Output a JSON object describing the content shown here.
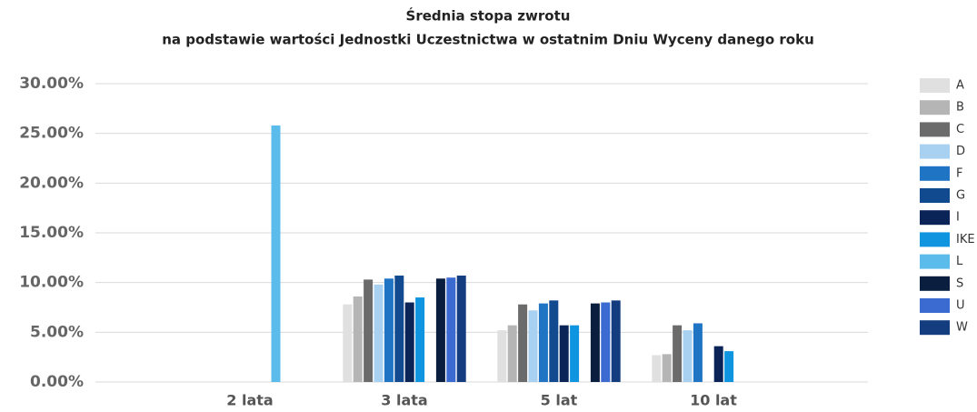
{
  "chart_data": {
    "type": "bar",
    "title": "Średnia stopa zwrotu",
    "subtitle": "na podstawie wartości Jednostki Uczestnictwa w ostatnim Dniu Wyceny danego roku",
    "categories": [
      "2 lata",
      "3 lata",
      "5 lat",
      "10 lat"
    ],
    "series": [
      {
        "name": "A",
        "color": "#e0e0e0",
        "values": [
          null,
          7.8,
          5.2,
          2.7
        ]
      },
      {
        "name": "B",
        "color": "#b5b5b5",
        "values": [
          null,
          8.6,
          5.7,
          2.8
        ]
      },
      {
        "name": "C",
        "color": "#6b6b6b",
        "values": [
          null,
          10.3,
          7.8,
          5.7
        ]
      },
      {
        "name": "D",
        "color": "#a8d0f0",
        "values": [
          null,
          9.8,
          7.2,
          5.2
        ]
      },
      {
        "name": "F",
        "color": "#1f74c4",
        "values": [
          null,
          10.4,
          7.9,
          5.9
        ]
      },
      {
        "name": "G",
        "color": "#114a8f",
        "values": [
          null,
          10.7,
          8.2,
          null
        ]
      },
      {
        "name": "I",
        "color": "#0a2458",
        "values": [
          null,
          8.0,
          5.7,
          3.6
        ]
      },
      {
        "name": "IKE",
        "color": "#0f95e0",
        "values": [
          null,
          8.5,
          5.7,
          3.1
        ]
      },
      {
        "name": "L",
        "color": "#5bbcec",
        "values": [
          25.8,
          null,
          null,
          null
        ]
      },
      {
        "name": "S",
        "color": "#0a1f3f",
        "values": [
          null,
          10.4,
          7.9,
          null
        ]
      },
      {
        "name": "U",
        "color": "#3b6ad0",
        "values": [
          null,
          10.5,
          8.0,
          null
        ]
      },
      {
        "name": "W",
        "color": "#143d80",
        "values": [
          null,
          10.7,
          8.2,
          null
        ]
      }
    ],
    "ylim": [
      0,
      30
    ],
    "yticks": [
      {
        "value": 0,
        "label": "0.00%"
      },
      {
        "value": 5,
        "label": "5.00%"
      },
      {
        "value": 10,
        "label": "10.00%"
      },
      {
        "value": 15,
        "label": "15.00%"
      },
      {
        "value": 20,
        "label": "20.00%"
      },
      {
        "value": 25,
        "label": "25.00%"
      },
      {
        "value": 30,
        "label": "30.00%"
      }
    ],
    "grid": true,
    "legend": "right"
  }
}
